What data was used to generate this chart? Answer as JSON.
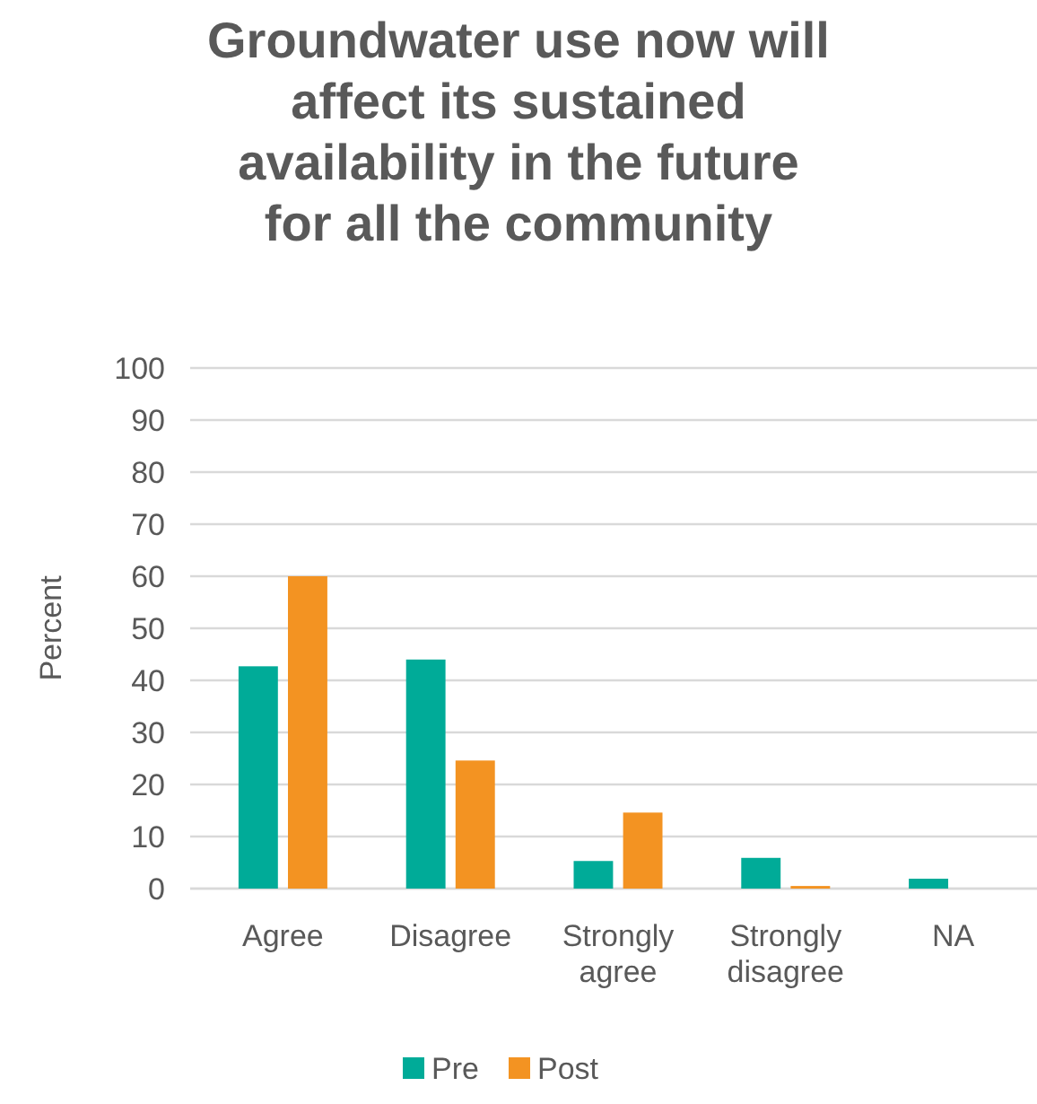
{
  "chart_data": {
    "type": "bar",
    "title": "Groundwater use now will affect its sustained availability in the future for all the community",
    "ylabel": "Percent",
    "categories": [
      "Agree",
      "Disagree",
      "Strongly agree",
      "Strongly disagree",
      "NA"
    ],
    "series": [
      {
        "name": "Pre",
        "color": "#00ab98",
        "values": [
          42.7,
          44,
          5.3,
          5.9,
          1.9
        ]
      },
      {
        "name": "Post",
        "color": "#f39322",
        "values": [
          60,
          24.6,
          14.6,
          0.5,
          0
        ]
      }
    ],
    "ylim": [
      0,
      100
    ],
    "yticks": [
      0,
      10,
      20,
      30,
      40,
      50,
      60,
      70,
      80,
      90,
      100
    ],
    "grid": "y",
    "legend": "bottom"
  }
}
